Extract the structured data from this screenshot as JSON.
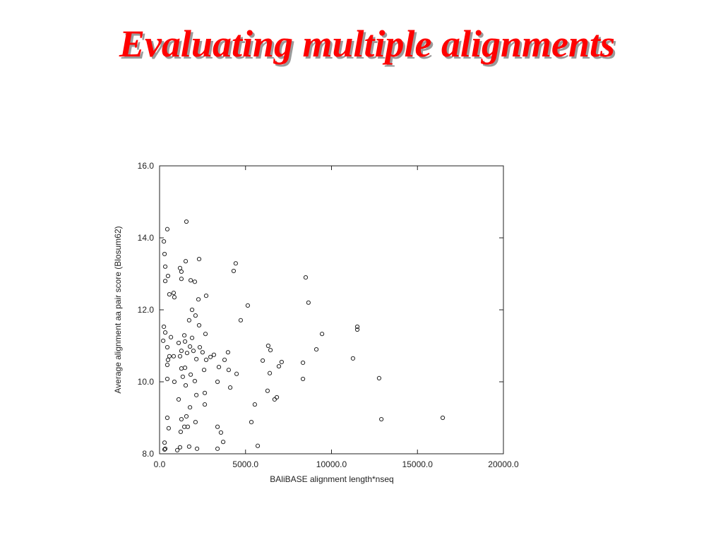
{
  "chart_data": {
    "type": "scatter",
    "title": "Evaluating multiple alignments",
    "x_label": "BAliBASE alignment length*nseq",
    "y_label": "Average alignment aa pair score (Blosum62)",
    "xlim": [
      0,
      20000
    ],
    "ylim": [
      8,
      16
    ],
    "xticks": [
      {
        "value": 0,
        "label": "0.0"
      },
      {
        "value": 5000,
        "label": "5000.0"
      },
      {
        "value": 10000,
        "label": "10000.0"
      },
      {
        "value": 15000,
        "label": "15000.0"
      },
      {
        "value": 20000,
        "label": "20000.0"
      }
    ],
    "yticks": [
      {
        "value": 8,
        "label": "8.0"
      },
      {
        "value": 10,
        "label": "10.0"
      },
      {
        "value": 12,
        "label": "12.0"
      },
      {
        "value": 14,
        "label": "14.0"
      },
      {
        "value": 16,
        "label": "16.0"
      }
    ],
    "grid": false,
    "color": "#222222",
    "x": [
      250,
      290,
      450,
      330,
      490,
      330,
      570,
      820,
      860,
      1560,
      1520,
      1190,
      1270,
      1270,
      1810,
      2050,
      2300,
      2710,
      2260,
      1890,
      2090,
      1720,
      2300,
      2670,
      1440,
      1890,
      1480,
      1110,
      660,
      250,
      330,
      210,
      450,
      1770,
      1970,
      2340,
      2500,
      1270,
      570,
      490,
      820,
      1190,
      1600,
      2140,
      2710,
      2960,
      3160,
      3780,
      3980,
      3450,
      1270,
      1480,
      2590,
      4020,
      4480,
      450,
      450,
      1350,
      860,
      1810,
      1520,
      2050,
      3370,
      4110,
      2140,
      2630,
      1110,
      1770,
      2630,
      450,
      1270,
      1560,
      1440,
      1640,
      1230,
      2090,
      530,
      290,
      290,
      330,
      1030,
      1190,
      1720,
      2180,
      3370,
      3570,
      3700,
      3370,
      4310,
      4430,
      4720,
      5130,
      5340,
      5540,
      5710,
      6000,
      6320,
      6450,
      6410,
      6280,
      6690,
      6820,
      6940,
      7100,
      8340,
      8340,
      8500,
      8660,
      9120,
      9450,
      11250,
      11500,
      11500,
      12770,
      12900,
      16470
    ],
    "y": [
      13.9,
      13.55,
      14.24,
      13.2,
      12.94,
      12.8,
      12.43,
      12.47,
      12.35,
      14.45,
      13.35,
      13.16,
      13.06,
      12.86,
      12.82,
      12.78,
      13.41,
      12.39,
      12.29,
      12.0,
      11.84,
      11.71,
      11.57,
      11.33,
      11.29,
      11.22,
      11.12,
      11.08,
      11.24,
      11.53,
      11.37,
      11.14,
      10.96,
      10.98,
      10.86,
      10.96,
      10.82,
      10.86,
      10.71,
      10.61,
      10.71,
      10.71,
      10.8,
      10.63,
      10.61,
      10.69,
      10.75,
      10.61,
      10.82,
      10.41,
      10.37,
      10.39,
      10.33,
      10.33,
      10.22,
      10.47,
      10.08,
      10.14,
      10.0,
      10.2,
      9.9,
      10.02,
      10.0,
      9.84,
      9.63,
      9.69,
      9.51,
      9.29,
      9.37,
      9.0,
      8.96,
      9.04,
      8.75,
      8.75,
      8.61,
      8.88,
      8.71,
      8.31,
      8.12,
      8.14,
      8.1,
      8.18,
      8.2,
      8.14,
      8.75,
      8.59,
      8.33,
      8.14,
      13.08,
      13.29,
      11.71,
      12.12,
      8.88,
      9.37,
      8.22,
      10.59,
      11.0,
      10.88,
      10.24,
      9.75,
      9.51,
      9.57,
      10.43,
      10.55,
      10.53,
      10.08,
      12.9,
      12.2,
      10.9,
      11.33,
      10.65,
      11.53,
      11.45,
      10.1,
      8.96,
      9.0
    ]
  }
}
